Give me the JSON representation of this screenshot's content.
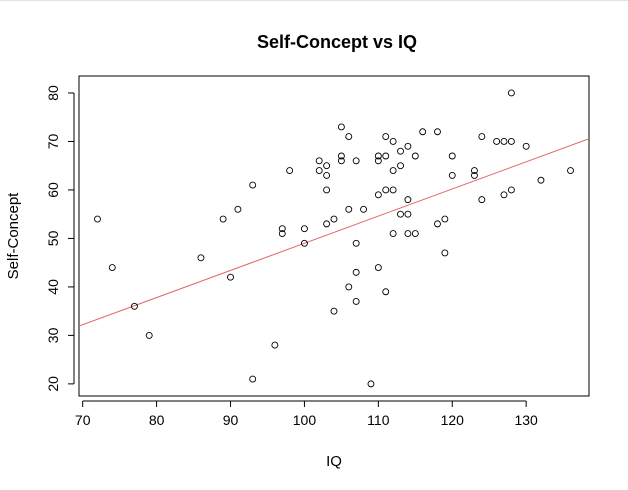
{
  "chart_data": {
    "type": "scatter",
    "title": "Self-Concept vs IQ",
    "xlabel": "IQ",
    "ylabel": "Self-Concept",
    "xlim": [
      69.5,
      138.5
    ],
    "ylim": [
      17.5,
      83.5
    ],
    "xticks": [
      70,
      80,
      90,
      100,
      110,
      120,
      130
    ],
    "yticks": [
      20,
      30,
      40,
      50,
      60,
      70,
      80
    ],
    "grid": false,
    "points": [
      [
        72,
        54
      ],
      [
        74,
        44
      ],
      [
        77,
        36
      ],
      [
        79,
        30
      ],
      [
        86,
        46
      ],
      [
        89,
        54
      ],
      [
        90,
        42
      ],
      [
        91,
        56
      ],
      [
        93,
        61
      ],
      [
        93,
        21
      ],
      [
        96,
        28
      ],
      [
        97,
        52
      ],
      [
        97,
        51
      ],
      [
        98,
        64
      ],
      [
        100,
        52
      ],
      [
        100,
        49
      ],
      [
        102,
        66
      ],
      [
        102,
        64
      ],
      [
        103,
        65
      ],
      [
        103,
        63
      ],
      [
        103,
        60
      ],
      [
        103,
        53
      ],
      [
        104,
        54
      ],
      [
        104,
        35
      ],
      [
        105,
        73
      ],
      [
        105,
        67
      ],
      [
        105,
        66
      ],
      [
        106,
        71
      ],
      [
        106,
        56
      ],
      [
        106,
        40
      ],
      [
        107,
        66
      ],
      [
        107,
        49
      ],
      [
        107,
        43
      ],
      [
        107,
        37
      ],
      [
        108,
        56
      ],
      [
        109,
        20
      ],
      [
        110,
        67
      ],
      [
        110,
        66
      ],
      [
        110,
        59
      ],
      [
        110,
        44
      ],
      [
        111,
        71
      ],
      [
        111,
        67
      ],
      [
        111,
        60
      ],
      [
        111,
        39
      ],
      [
        112,
        70
      ],
      [
        112,
        64
      ],
      [
        112,
        60
      ],
      [
        112,
        51
      ],
      [
        113,
        68
      ],
      [
        113,
        65
      ],
      [
        113,
        55
      ],
      [
        114,
        69
      ],
      [
        114,
        58
      ],
      [
        114,
        55
      ],
      [
        114,
        51
      ],
      [
        115,
        67
      ],
      [
        115,
        51
      ],
      [
        116,
        72
      ],
      [
        118,
        72
      ],
      [
        118,
        53
      ],
      [
        119,
        54
      ],
      [
        119,
        47
      ],
      [
        120,
        67
      ],
      [
        120,
        63
      ],
      [
        123,
        64
      ],
      [
        123,
        63
      ],
      [
        124,
        71
      ],
      [
        124,
        58
      ],
      [
        126,
        70
      ],
      [
        127,
        70
      ],
      [
        127,
        59
      ],
      [
        128,
        80
      ],
      [
        128,
        70
      ],
      [
        128,
        60
      ],
      [
        130,
        69
      ],
      [
        132,
        62
      ],
      [
        136,
        64
      ]
    ],
    "regression_line": {
      "intercept": -7.0,
      "slope": 0.56,
      "color": "#e06666"
    },
    "point_color": "#000000"
  }
}
